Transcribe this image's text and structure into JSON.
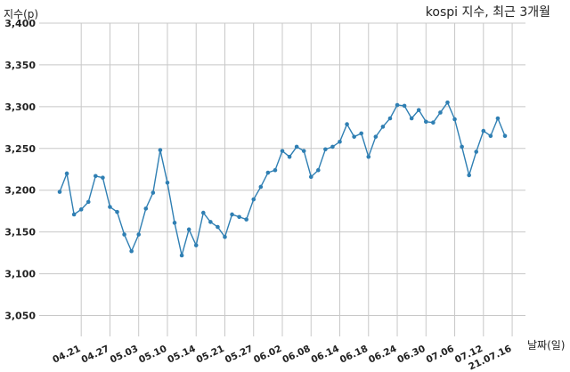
{
  "chart_data": {
    "type": "line",
    "title": "kospi 지수, 최근 3개월",
    "xlabel": "날짜(일)",
    "ylabel": "지수(p)",
    "ylim": [
      3025,
      3400
    ],
    "yticks": [
      3050,
      3100,
      3150,
      3200,
      3250,
      3300,
      3350,
      3400
    ],
    "ytick_labels": [
      "3,050",
      "3,100",
      "3,150",
      "3,200",
      "3,250",
      "3,300",
      "3,350",
      "3,400"
    ],
    "xtick_labels": [
      "04.21",
      "04.27",
      "05.03",
      "05.10",
      "05.14",
      "05.21",
      "05.27",
      "06.02",
      "06.08",
      "06.14",
      "06.18",
      "06.24",
      "06.30",
      "07.06",
      "07.12",
      "21.07.16"
    ],
    "xtick_positions": [
      3,
      7,
      11,
      15,
      19,
      23,
      27,
      31,
      35,
      39,
      43,
      47,
      51,
      55,
      59,
      63
    ],
    "grid": true,
    "color": "#2f7fb3",
    "series": [
      {
        "values": [
          3198,
          3220,
          3171,
          3177,
          3186,
          3217,
          3215,
          3180,
          3174,
          3147,
          3127,
          3147,
          3178,
          3197,
          3248,
          3209,
          3161,
          3122,
          3153,
          3134,
          3173,
          3162,
          3156,
          3144,
          3171,
          3168,
          3165,
          3189,
          3204,
          3221,
          3224,
          3247,
          3240,
          3252,
          3247,
          3216,
          3224,
          3249,
          3252,
          3258,
          3279,
          3264,
          3268,
          3240,
          3264,
          3276,
          3286,
          3302,
          3301,
          3286,
          3296,
          3282,
          3281,
          3293,
          3305,
          3285,
          3252,
          3218,
          3246,
          3271,
          3265,
          3286,
          3265
        ]
      }
    ]
  }
}
